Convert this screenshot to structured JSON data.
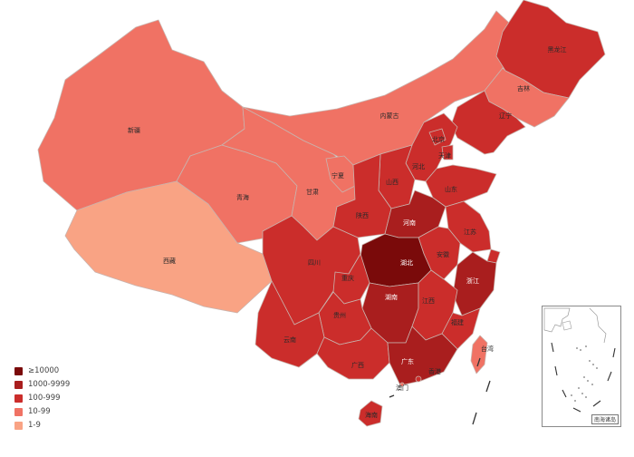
{
  "colors": {
    "ge10000": "#7a0a0a",
    "r1000_9999": "#a91e1e",
    "r100_999": "#cb2d2b",
    "r10_99": "#f07264",
    "r1_9": "#f9a384",
    "border": "#c9b3ad"
  },
  "legend": [
    {
      "label": "≥10000",
      "color": "#7a0a0a"
    },
    {
      "label": "1000-9999",
      "color": "#a91e1e"
    },
    {
      "label": "100-999",
      "color": "#cb2d2b"
    },
    {
      "label": "10-99",
      "color": "#f07264"
    },
    {
      "label": "1-9",
      "color": "#f9a384"
    }
  ],
  "provinces": [
    {
      "id": "xinjiang",
      "name": "新疆",
      "level": "r10_99"
    },
    {
      "id": "xizang",
      "name": "西藏",
      "level": "r1_9"
    },
    {
      "id": "qinghai",
      "name": "青海",
      "level": "r10_99"
    },
    {
      "id": "gansu",
      "name": "甘肃",
      "level": "r10_99"
    },
    {
      "id": "neimenggu",
      "name": "内蒙古",
      "level": "r10_99"
    },
    {
      "id": "ningxia",
      "name": "宁夏",
      "level": "r10_99"
    },
    {
      "id": "heilongjiang",
      "name": "黑龙江",
      "level": "r100_999"
    },
    {
      "id": "jilin",
      "name": "吉林",
      "level": "r10_99"
    },
    {
      "id": "liaoning",
      "name": "辽宁",
      "level": "r100_999"
    },
    {
      "id": "beijing",
      "name": "北京",
      "level": "r100_999"
    },
    {
      "id": "tianjin",
      "name": "天津",
      "level": "r100_999"
    },
    {
      "id": "hebei",
      "name": "河北",
      "level": "r100_999"
    },
    {
      "id": "shanxi",
      "name": "山西",
      "level": "r100_999"
    },
    {
      "id": "shandong",
      "name": "山东",
      "level": "r100_999"
    },
    {
      "id": "shaanxi",
      "name": "陕西",
      "level": "r100_999"
    },
    {
      "id": "henan",
      "name": "河南",
      "level": "r1000_9999"
    },
    {
      "id": "jiangsu",
      "name": "江苏",
      "level": "r100_999"
    },
    {
      "id": "anhui",
      "name": "安徽",
      "level": "r100_999"
    },
    {
      "id": "shanghai",
      "name": "",
      "level": "r100_999"
    },
    {
      "id": "hubei",
      "name": "湖北",
      "level": "ge10000"
    },
    {
      "id": "zhejiang",
      "name": "浙江",
      "level": "r1000_9999"
    },
    {
      "id": "sichuan",
      "name": "四川",
      "level": "r100_999"
    },
    {
      "id": "chongqing",
      "name": "重庆",
      "level": "r100_999"
    },
    {
      "id": "hunan",
      "name": "湖南",
      "level": "r1000_9999"
    },
    {
      "id": "jiangxi",
      "name": "江西",
      "level": "r100_999"
    },
    {
      "id": "guizhou",
      "name": "贵州",
      "level": "r100_999"
    },
    {
      "id": "fujian",
      "name": "福建",
      "level": "r100_999"
    },
    {
      "id": "yunnan",
      "name": "云南",
      "level": "r100_999"
    },
    {
      "id": "guangxi",
      "name": "广西",
      "level": "r100_999"
    },
    {
      "id": "guangdong",
      "name": "广东",
      "level": "r1000_9999"
    },
    {
      "id": "hainan",
      "name": "海南",
      "level": "r100_999"
    },
    {
      "id": "taiwan",
      "name": "台湾",
      "level": "r10_99"
    },
    {
      "id": "hongkong",
      "name": "香港",
      "level": "r100_999"
    },
    {
      "id": "macau",
      "name": "澳门",
      "level": "r10_99"
    }
  ],
  "inset": {
    "label": "南海诸岛"
  }
}
